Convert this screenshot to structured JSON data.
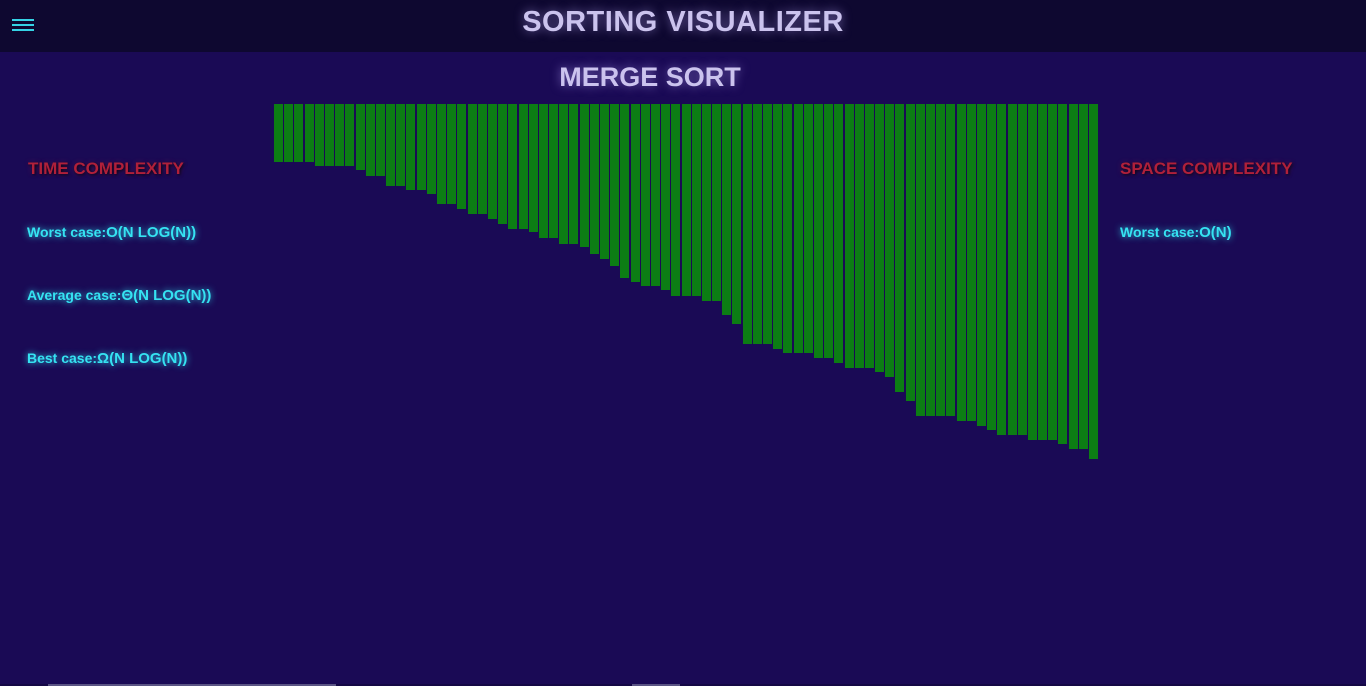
{
  "header": {
    "title": "SORTING VISUALIZER",
    "menu_icon": "hamburger-menu-icon"
  },
  "algorithm": {
    "name": "MERGE SORT"
  },
  "time_complexity": {
    "heading": "TIME COMPLEXITY",
    "worst_label": "Worst case:",
    "worst_value": "O(N LOG(N))",
    "average_label": "Average case:",
    "average_value": "Θ(N LOG(N))",
    "best_label": "Best case:",
    "best_value": "Ω(N LOG(N))"
  },
  "space_complexity": {
    "heading": "SPACE COMPLEXITY",
    "worst_label": "Worst case:",
    "worst_value": "O(N)"
  },
  "colors": {
    "background": "#1a0a55",
    "topbar": "#0e0830",
    "bar": "#0c7d14",
    "heading_red": "#b0203a",
    "cyan_text": "#35e3f2"
  },
  "array_bars": [
    58,
    58,
    58,
    58,
    62,
    62,
    62,
    62,
    66,
    72,
    72,
    82,
    82,
    86,
    86,
    90,
    100,
    100,
    105,
    110,
    110,
    115,
    120,
    125,
    125,
    128,
    134,
    134,
    140,
    140,
    143,
    150,
    155,
    162,
    174,
    178,
    182,
    182,
    186,
    192,
    192,
    192,
    197,
    197,
    211,
    220,
    240,
    240,
    240,
    245,
    249,
    249,
    249,
    254,
    254,
    259,
    264,
    264,
    264,
    268,
    273,
    288,
    297,
    312,
    312,
    312,
    312,
    317,
    317,
    322,
    326,
    331,
    331,
    331,
    336,
    336,
    336,
    340,
    345,
    345,
    355
  ]
}
